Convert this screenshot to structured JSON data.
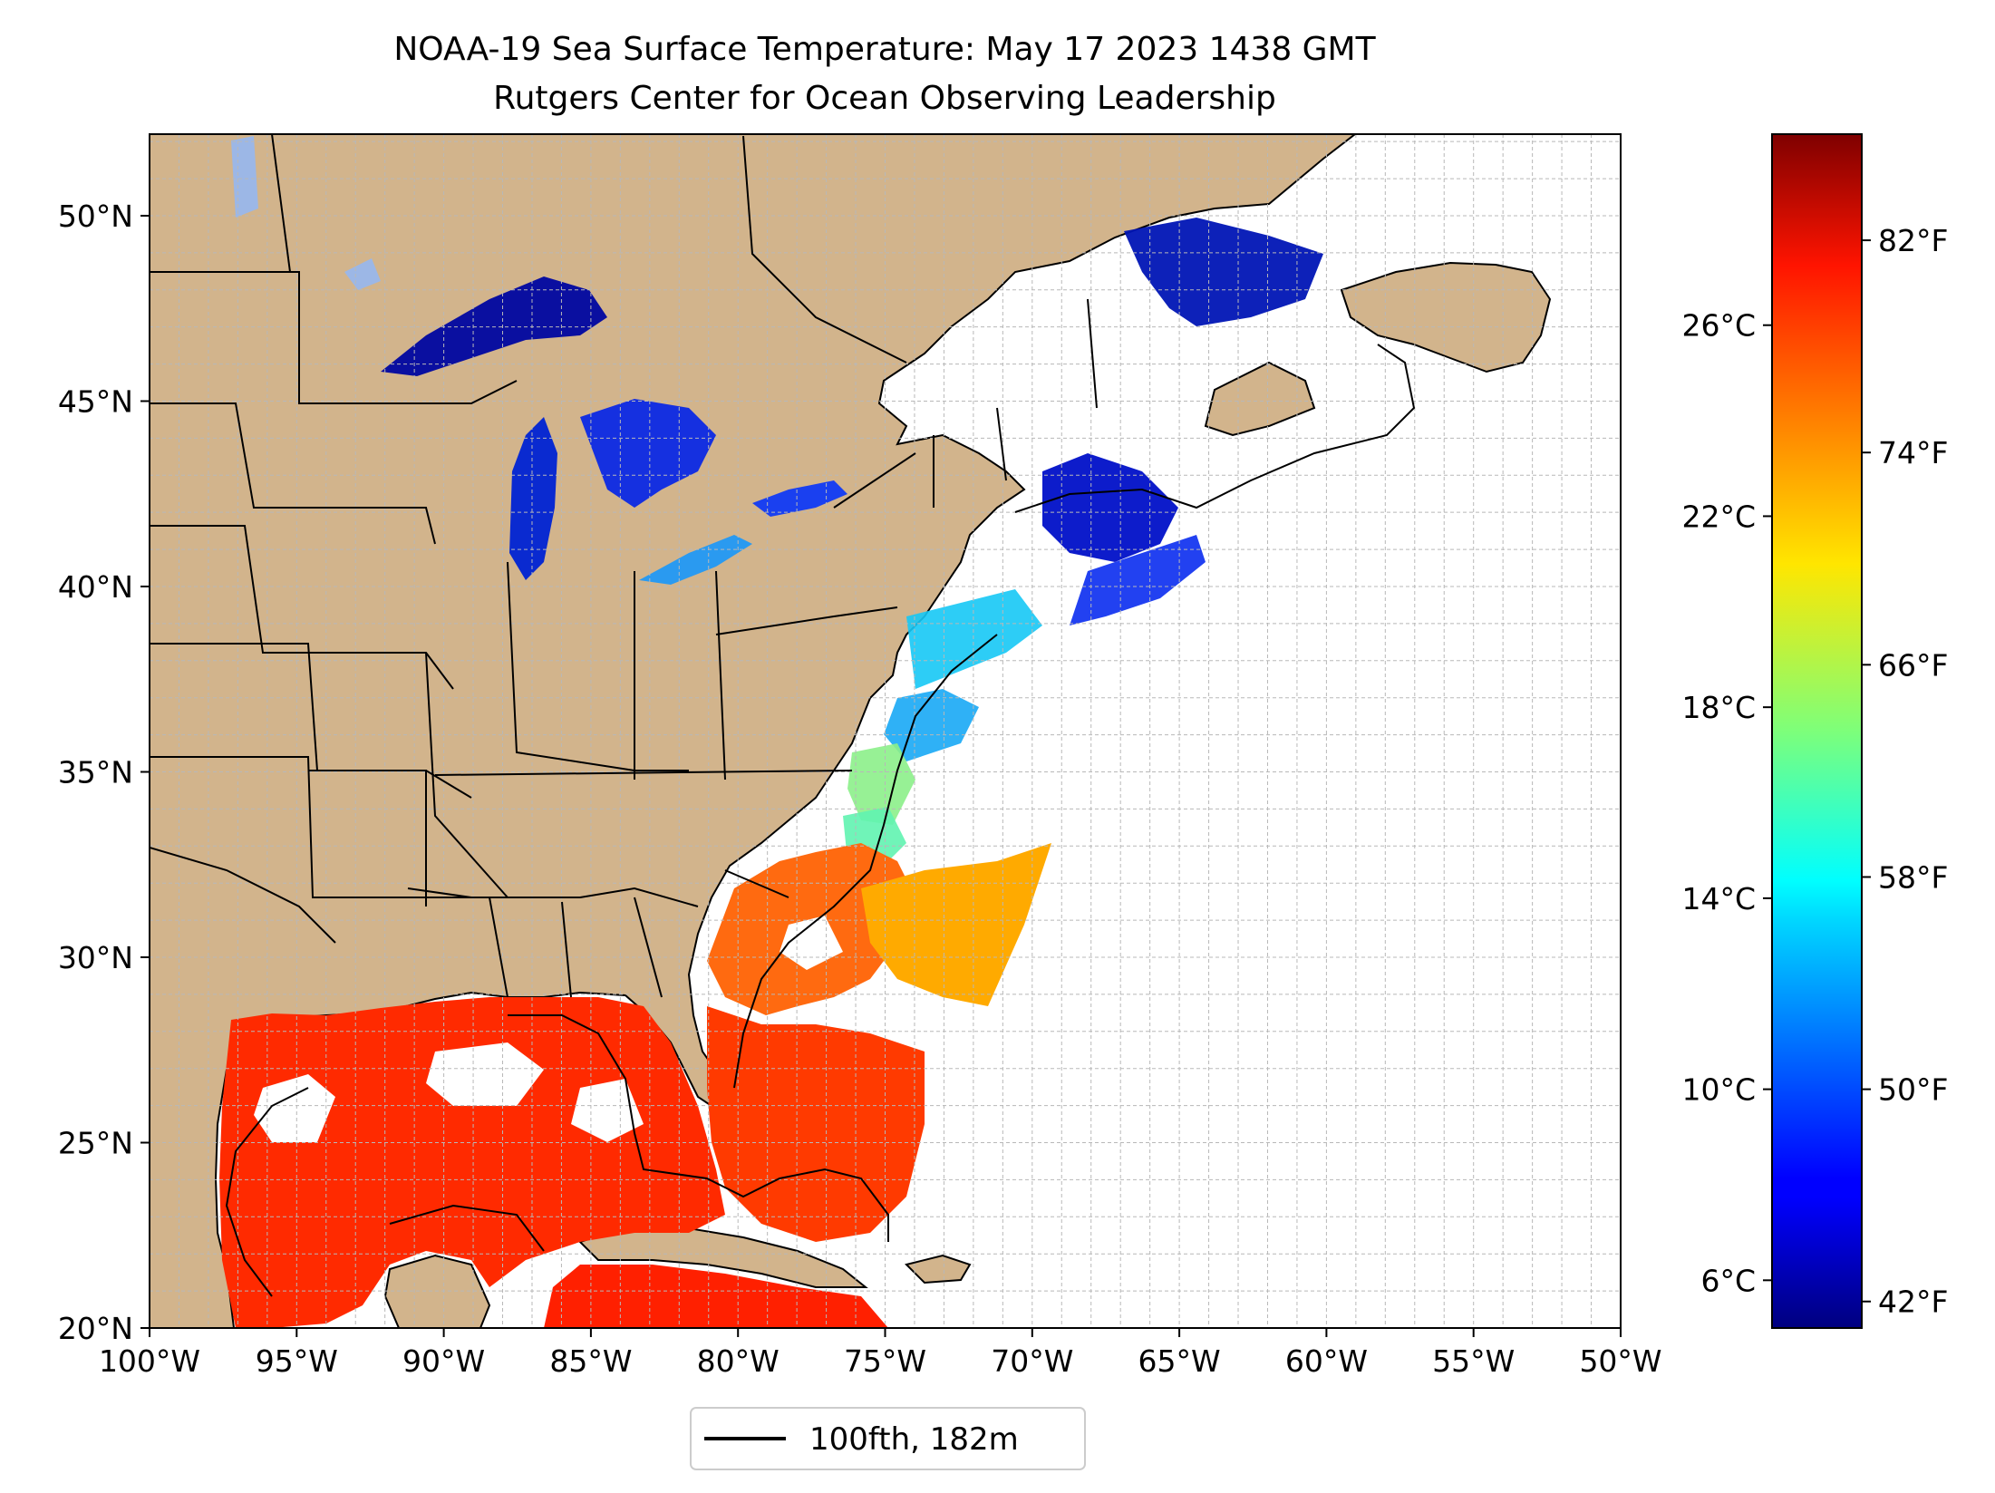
{
  "title": {
    "line1": "NOAA-19 Sea Surface Temperature: May 17 2023 1438 GMT",
    "line2": "Rutgers Center for Ocean Observing Leadership"
  },
  "map": {
    "lon_range": [
      -100,
      -50
    ],
    "lat_range": [
      20,
      52.2
    ],
    "lon_ticks": [
      {
        "value": -100,
        "label": "100°W"
      },
      {
        "value": -95,
        "label": "95°W"
      },
      {
        "value": -90,
        "label": "90°W"
      },
      {
        "value": -85,
        "label": "85°W"
      },
      {
        "value": -80,
        "label": "80°W"
      },
      {
        "value": -75,
        "label": "75°W"
      },
      {
        "value": -70,
        "label": "70°W"
      },
      {
        "value": -65,
        "label": "65°W"
      },
      {
        "value": -60,
        "label": "60°W"
      },
      {
        "value": -55,
        "label": "55°W"
      },
      {
        "value": -50,
        "label": "50°W"
      }
    ],
    "lat_ticks": [
      {
        "value": 20,
        "label": "20°N"
      },
      {
        "value": 25,
        "label": "25°N"
      },
      {
        "value": 30,
        "label": "30°N"
      },
      {
        "value": 35,
        "label": "35°N"
      },
      {
        "value": 40,
        "label": "40°N"
      },
      {
        "value": 45,
        "label": "45°N"
      },
      {
        "value": 50,
        "label": "50°N"
      }
    ],
    "colors": {
      "land": "#d2b48c",
      "ocean": "#ffffff",
      "lakes": "#9cb7e6",
      "grid": "#b8b8b8"
    }
  },
  "colorbar": {
    "range_f": [
      41,
      86
    ],
    "celsius_ticks": [
      {
        "value_c": 6,
        "label": "6°C"
      },
      {
        "value_c": 10,
        "label": "10°C"
      },
      {
        "value_c": 14,
        "label": "14°C"
      },
      {
        "value_c": 18,
        "label": "18°C"
      },
      {
        "value_c": 22,
        "label": "22°C"
      },
      {
        "value_c": 26,
        "label": "26°C"
      }
    ],
    "fahrenheit_ticks": [
      {
        "value_f": 42,
        "label": "42°F"
      },
      {
        "value_f": 50,
        "label": "50°F"
      },
      {
        "value_f": 58,
        "label": "58°F"
      },
      {
        "value_f": 66,
        "label": "66°F"
      },
      {
        "value_f": 74,
        "label": "74°F"
      },
      {
        "value_f": 82,
        "label": "82°F"
      }
    ],
    "colormap": "jet"
  },
  "legend": {
    "label": "100fth, 182m",
    "line_color": "#000000"
  }
}
